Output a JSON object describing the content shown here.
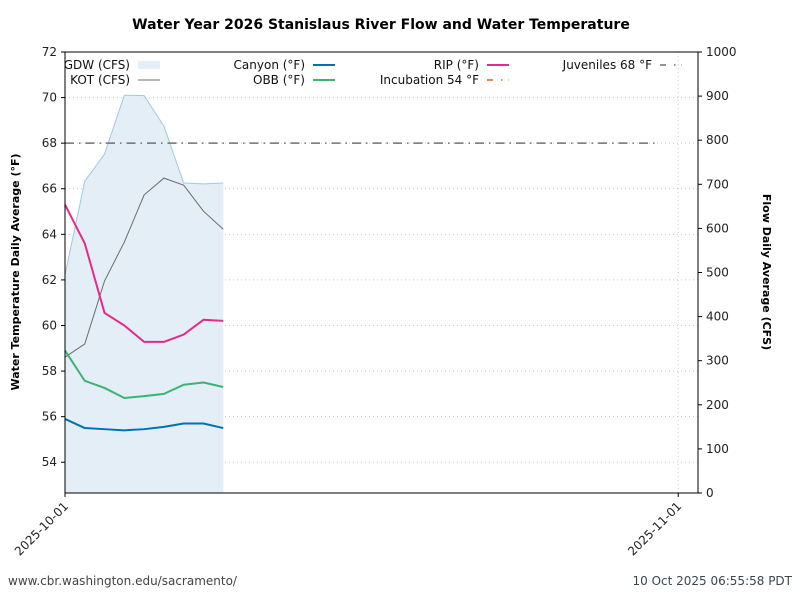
{
  "chart_data": {
    "type": "line",
    "title": "Water Year 2026 Stanislaus River Flow and Water Temperature",
    "ylabel": "Water Temperature Daily Average (°F)",
    "y2label": "Flow Daily Average (CFS)",
    "xlabel": "",
    "x_range": [
      "2025-10-01",
      "2025-11-02"
    ],
    "x_ticks": [
      "2025-10-01",
      "2025-11-01"
    ],
    "ylim": [
      52.65,
      72
    ],
    "y_ticks": [
      54,
      56,
      58,
      60,
      62,
      64,
      66,
      68,
      70,
      72
    ],
    "y2lim": [
      0,
      1000
    ],
    "y2_ticks": [
      0,
      100,
      200,
      300,
      400,
      500,
      600,
      700,
      800,
      900,
      1000
    ],
    "grid": true,
    "legend_position": "top",
    "dates": [
      "2025-10-01",
      "2025-10-02",
      "2025-10-03",
      "2025-10-04",
      "2025-10-05",
      "2025-10-06",
      "2025-10-07",
      "2025-10-08",
      "2025-10-09"
    ],
    "flow_series": [
      {
        "name": "GDW (CFS)",
        "style": "area",
        "color": "#9ecae1",
        "fill": "#e3eef7",
        "values": [
          495,
          707,
          769,
          902,
          901,
          832,
          703,
          701,
          703
        ]
      },
      {
        "name": "KOT (CFS)",
        "style": "line",
        "color": "#6b6b6b",
        "values": [
          308,
          338,
          481,
          569,
          676,
          714,
          698,
          639,
          598
        ]
      }
    ],
    "temp_series": [
      {
        "name": "Canyon (°F)",
        "color": "#0072b2",
        "values": [
          55.9,
          55.5,
          55.45,
          55.4,
          55.45,
          55.55,
          55.7,
          55.7,
          55.5
        ]
      },
      {
        "name": "OBB (°F)",
        "color": "#3cb371",
        "values": [
          58.9,
          57.57,
          57.26,
          56.82,
          56.9,
          57.0,
          57.4,
          57.5,
          57.3
        ]
      },
      {
        "name": "RIP (°F)",
        "color": "#e7298a",
        "values": [
          65.3,
          63.6,
          60.55,
          60.0,
          59.28,
          59.28,
          59.6,
          60.25,
          60.2
        ]
      }
    ],
    "thresholds": [
      {
        "name": "Incubation 54 °F",
        "value": 54,
        "color": "#e66101",
        "style": "dashdot",
        "visible_in_plot": false
      },
      {
        "name": "Juveniles 68 °F",
        "value": 68,
        "color": "#707070",
        "style": "dashdot",
        "x_start": "2025-10-01",
        "x_end": "2025-10-31"
      }
    ],
    "legend": [
      {
        "label": "GDW (CFS)",
        "marker": "patch"
      },
      {
        "label": "KOT (CFS)",
        "marker": "line"
      },
      {
        "label": "Canyon (°F)",
        "marker": "line"
      },
      {
        "label": "OBB (°F)",
        "marker": "line"
      },
      {
        "label": "RIP (°F)",
        "marker": "line"
      },
      {
        "label": "Incubation 54 °F",
        "marker": "dashdot"
      },
      {
        "label": "Juveniles 68 °F",
        "marker": "dashdot"
      }
    ]
  },
  "footer": {
    "source_url": "www.cbr.washington.edu/sacramento/",
    "generated": "10 Oct 2025 06:55:58 PDT"
  }
}
